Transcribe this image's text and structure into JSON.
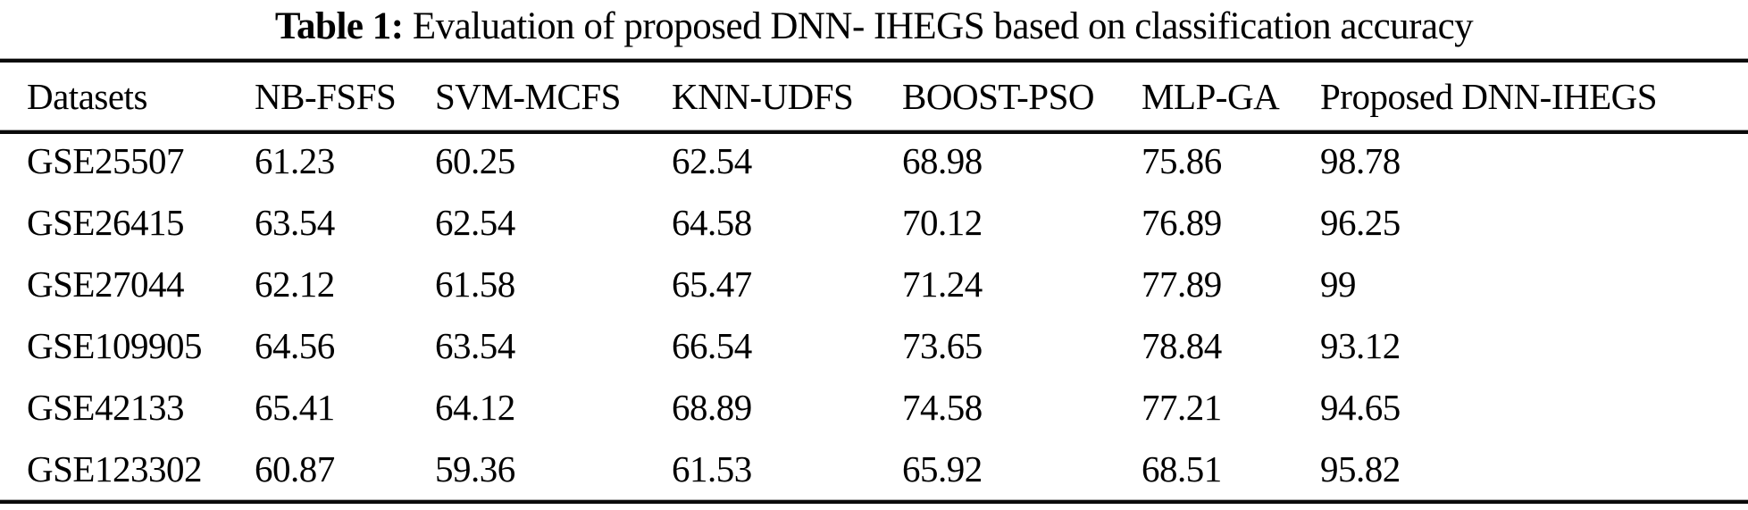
{
  "title": {
    "label": "Table 1:",
    "text": " Evaluation of proposed DNN- IHEGS based on classification accuracy"
  },
  "table": {
    "columns": [
      "Datasets",
      "NB-FSFS",
      "SVM-MCFS",
      "KNN-UDFS",
      "BOOST-PSO",
      "MLP-GA",
      "Proposed DNN-IHEGS"
    ],
    "rows": [
      [
        "GSE25507",
        "61.23",
        "60.25",
        "62.54",
        "68.98",
        "75.86",
        "98.78"
      ],
      [
        "GSE26415",
        "63.54",
        "62.54",
        "64.58",
        "70.12",
        "76.89",
        "96.25"
      ],
      [
        "GSE27044",
        "62.12",
        "61.58",
        "65.47",
        "71.24",
        "77.89",
        "99"
      ],
      [
        "GSE109905",
        "64.56",
        "63.54",
        "66.54",
        "73.65",
        "78.84",
        "93.12"
      ],
      [
        "GSE42133",
        "65.41",
        "64.12",
        "68.89",
        "74.58",
        "77.21",
        "94.65"
      ],
      [
        "GSE123302",
        "60.87",
        "59.36",
        "61.53",
        "65.92",
        "68.51",
        "95.82"
      ]
    ]
  }
}
